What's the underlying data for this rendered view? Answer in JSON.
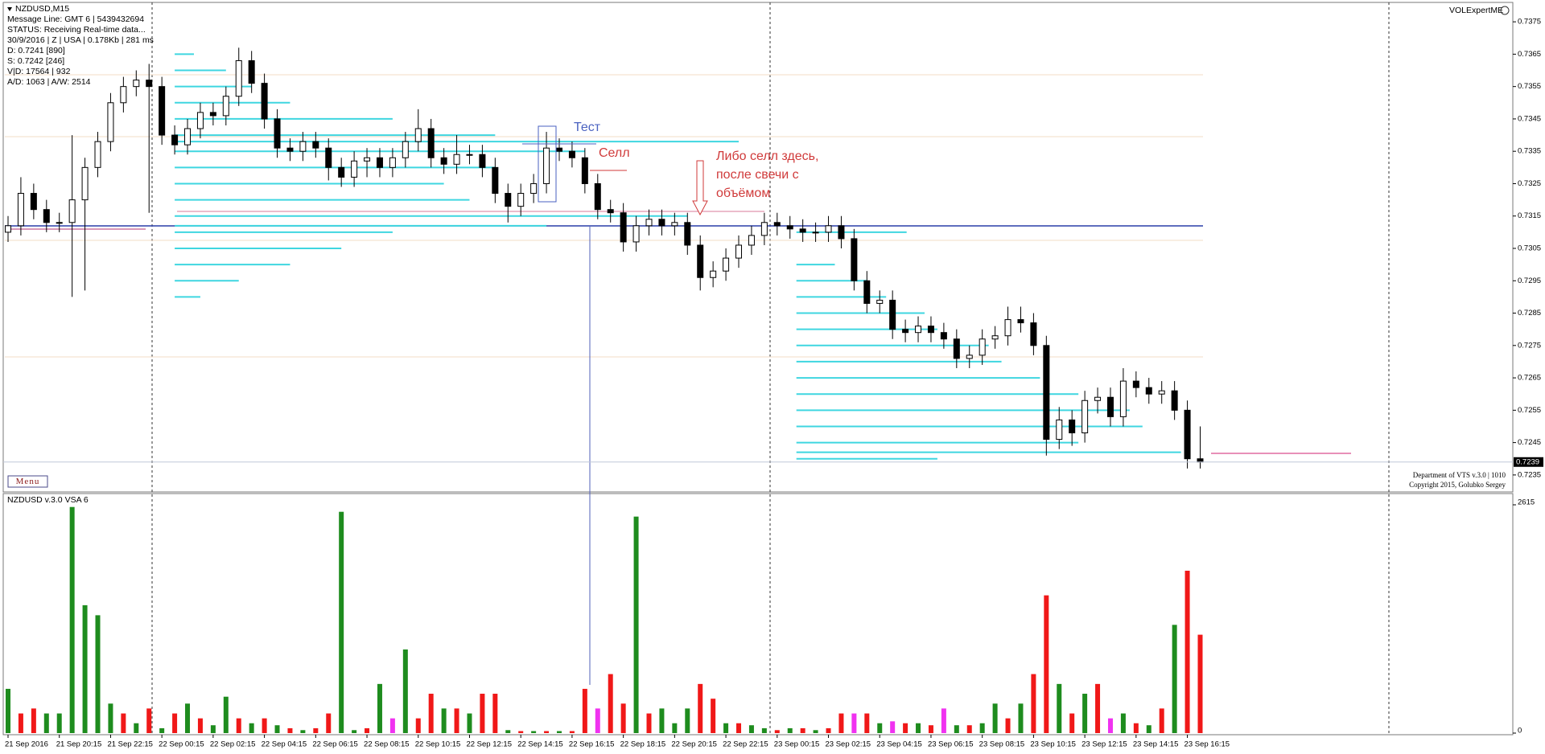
{
  "chart_data": {
    "type": "candlestick",
    "info_lines": [
      "NZDUSD,M15",
      "Message Line: GMT 6 | 5439432694",
      "STATUS:  Receiving Real-time data...",
      "30/9/2016 | Z | USA | 0.178Kb | 281 ms",
      "D: 0.7241  [890]",
      "S: 0.7242  [246]",
      "V|D: 17564 | 932",
      "A/D: 1063 | A/W: 2514"
    ],
    "indicator_name": "VOLExpertME",
    "menu": "Menu",
    "credits": [
      "Department of VTS  v.3.0 | 1010",
      "Copyright 2015, Golubko Sergey"
    ],
    "annotations": [
      "Тест",
      "Селл",
      "Либо селл здесь,",
      "после свечи с",
      "объёмом"
    ],
    "x": [
      "21 Sep 2016",
      null,
      null,
      null,
      "21 Sep 20:15",
      null,
      null,
      null,
      "21 Sep 22:15",
      null,
      null,
      null,
      "22 Sep 00:15",
      null,
      null,
      null,
      "22 Sep 02:15",
      null,
      null,
      null,
      "22 Sep 04:15",
      null,
      null,
      null,
      "22 Sep 06:15",
      null,
      null,
      null,
      "22 Sep 08:15",
      null,
      null,
      null,
      "22 Sep 10:15",
      null,
      null,
      null,
      "22 Sep 12:15",
      null,
      null,
      null,
      "22 Sep 14:15",
      null,
      null,
      null,
      "22 Sep 16:15",
      null,
      null,
      null,
      "22 Sep 18:15",
      null,
      null,
      null,
      "22 Sep 20:15",
      null,
      null,
      null,
      "22 Sep 22:15",
      null,
      null,
      null,
      "23 Sep 00:15",
      null,
      null,
      null,
      "23 Sep 02:15",
      null,
      null,
      null,
      "23 Sep 04:15",
      null,
      null,
      null,
      "23 Sep 06:15",
      null,
      null,
      null,
      "23 Sep 08:15",
      null,
      null,
      null,
      "23 Sep 10:15",
      null,
      null,
      null,
      "23 Sep 12:15",
      null,
      null,
      null,
      "23 Sep 14:15",
      null,
      null,
      null,
      "23 Sep 16:15",
      null
    ],
    "open": [
      0.731,
      0.7312,
      0.7322,
      0.7317,
      0.7313,
      0.7313,
      0.732,
      0.733,
      0.7338,
      0.735,
      0.7355,
      0.7357,
      0.7355,
      0.734,
      0.7337,
      0.7342,
      0.7347,
      0.7346,
      0.7352,
      0.7363,
      0.7356,
      0.7345,
      0.7336,
      0.7335,
      0.7338,
      0.7336,
      0.733,
      0.7327,
      0.7332,
      0.7333,
      0.733,
      0.7333,
      0.7338,
      0.7342,
      0.7333,
      0.7331,
      0.7334,
      0.7334,
      0.733,
      0.7322,
      0.7318,
      0.7322,
      0.7325,
      0.7336,
      0.7335,
      0.7333,
      0.7325,
      0.7317,
      0.7316,
      0.7307,
      0.7312,
      0.7314,
      0.7312,
      0.7313,
      0.7306,
      0.7296,
      0.7298,
      0.7302,
      0.7306,
      0.7309,
      0.7313,
      0.7312,
      0.7311,
      0.731,
      0.731,
      0.7312,
      0.7308,
      0.7295,
      0.7288,
      0.7289,
      0.728,
      0.7279,
      0.7281,
      0.7279,
      0.7277,
      0.7271,
      0.7272,
      0.7277,
      0.7278,
      0.7283,
      0.7282,
      0.7275,
      0.7246,
      0.7252,
      0.7248,
      0.7258,
      0.7259,
      0.7253,
      0.7264,
      0.7262,
      0.726,
      0.7261,
      0.7255,
      0.724
    ],
    "high": [
      0.7315,
      0.7327,
      0.7325,
      0.732,
      0.7316,
      0.734,
      0.7333,
      0.7341,
      0.7353,
      0.7358,
      0.736,
      0.7362,
      0.7358,
      0.7343,
      0.7345,
      0.735,
      0.735,
      0.7355,
      0.7367,
      0.7366,
      0.7359,
      0.7348,
      0.7339,
      0.7341,
      0.7341,
      0.7339,
      0.7333,
      0.7335,
      0.7336,
      0.7336,
      0.7336,
      0.7341,
      0.7348,
      0.7345,
      0.7336,
      0.734,
      0.7337,
      0.7337,
      0.7333,
      0.7325,
      0.7325,
      0.7328,
      0.7341,
      0.7339,
      0.7338,
      0.7336,
      0.7328,
      0.732,
      0.7319,
      0.7315,
      0.7317,
      0.7317,
      0.7316,
      0.7316,
      0.7309,
      0.7301,
      0.7305,
      0.7309,
      0.7312,
      0.7316,
      0.7316,
      0.7315,
      0.7314,
      0.7313,
      0.7315,
      0.7315,
      0.7311,
      0.7298,
      0.7292,
      0.7292,
      0.7283,
      0.7284,
      0.7284,
      0.7282,
      0.728,
      0.7275,
      0.728,
      0.7281,
      0.7287,
      0.7287,
      0.7285,
      0.7278,
      0.7256,
      0.7255,
      0.7261,
      0.7262,
      0.7262,
      0.7268,
      0.7267,
      0.7265,
      0.7264,
      0.7264,
      0.7258,
      0.725
    ],
    "low": [
      0.7307,
      0.7309,
      0.7314,
      0.731,
      0.731,
      0.729,
      0.7292,
      0.7327,
      0.7335,
      0.7347,
      0.7352,
      0.7316,
      0.7337,
      0.7334,
      0.7334,
      0.7339,
      0.7343,
      0.7343,
      0.7349,
      0.7353,
      0.7342,
      0.7333,
      0.7332,
      0.7332,
      0.7333,
      0.7326,
      0.7324,
      0.7324,
      0.7327,
      0.7327,
      0.7327,
      0.733,
      0.7335,
      0.733,
      0.7328,
      0.7328,
      0.7331,
      0.7327,
      0.7319,
      0.7313,
      0.7315,
      0.7319,
      0.7322,
      0.7332,
      0.733,
      0.7322,
      0.7314,
      0.7313,
      0.7304,
      0.7304,
      0.7309,
      0.7309,
      0.7309,
      0.7303,
      0.7292,
      0.7293,
      0.7295,
      0.7299,
      0.7303,
      0.7306,
      0.7309,
      0.7308,
      0.7307,
      0.7307,
      0.7307,
      0.7305,
      0.7292,
      0.7285,
      0.7285,
      0.7277,
      0.7276,
      0.7276,
      0.7276,
      0.7274,
      0.7268,
      0.7268,
      0.7269,
      0.7274,
      0.7275,
      0.7279,
      0.7272,
      0.7241,
      0.7243,
      0.7244,
      0.7245,
      0.7254,
      0.725,
      0.725,
      0.7259,
      0.7257,
      0.7257,
      0.7252,
      0.7237,
      0.7237
    ],
    "close": [
      0.7312,
      0.7322,
      0.7317,
      0.7313,
      0.7313,
      0.732,
      0.733,
      0.7338,
      0.735,
      0.7355,
      0.7357,
      0.7355,
      0.734,
      0.7337,
      0.7342,
      0.7347,
      0.7346,
      0.7352,
      0.7363,
      0.7356,
      0.7345,
      0.7336,
      0.7335,
      0.7338,
      0.7336,
      0.733,
      0.7327,
      0.7332,
      0.7333,
      0.733,
      0.7333,
      0.7338,
      0.7342,
      0.7333,
      0.7331,
      0.7334,
      0.7334,
      0.733,
      0.7322,
      0.7318,
      0.7322,
      0.7325,
      0.7336,
      0.7335,
      0.7333,
      0.7325,
      0.7317,
      0.7316,
      0.7307,
      0.7312,
      0.7314,
      0.7312,
      0.7313,
      0.7306,
      0.7296,
      0.7298,
      0.7302,
      0.7306,
      0.7309,
      0.7313,
      0.7312,
      0.7311,
      0.731,
      0.731,
      0.7312,
      0.7308,
      0.7295,
      0.7288,
      0.7289,
      0.728,
      0.7279,
      0.7281,
      0.7279,
      0.7277,
      0.7271,
      0.7272,
      0.7277,
      0.7278,
      0.7283,
      0.7282,
      0.7275,
      0.7246,
      0.7252,
      0.7248,
      0.7258,
      0.7259,
      0.7253,
      0.7264,
      0.7262,
      0.726,
      0.7261,
      0.7255,
      0.724,
      0.7239
    ],
    "up_color": "#ffffff",
    "down_color": "#000000",
    "ylim": [
      0.723,
      0.738
    ],
    "yticks": [
      0.7375,
      0.7365,
      0.7355,
      0.7345,
      0.7335,
      0.7325,
      0.7315,
      0.7305,
      0.7295,
      0.7285,
      0.7275,
      0.7265,
      0.7255,
      0.7245,
      0.7235
    ],
    "current_price": 0.7239,
    "grid": false,
    "volume_profiles": [
      {
        "color": "#3fd6e0",
        "start": 13,
        "prices": [
          0.7365,
          0.736,
          0.7355,
          0.735,
          0.7345,
          0.734,
          0.7338,
          0.7335,
          0.733,
          0.7325,
          0.732,
          0.7315,
          0.7312,
          0.731,
          0.7305,
          0.73,
          0.7295,
          0.729
        ],
        "lengths": [
          1.5,
          4,
          6,
          9,
          17,
          25,
          44,
          32,
          25,
          21,
          23,
          40,
          29,
          17,
          13,
          9,
          5,
          2
        ]
      },
      {
        "color": "#3fd6e0",
        "start": 61.5,
        "prices": [
          0.731,
          0.73,
          0.7295,
          0.729,
          0.7285,
          0.728,
          0.7275,
          0.727,
          0.7265,
          0.726,
          0.7255,
          0.725,
          0.7245,
          0.7242,
          0.724
        ],
        "lengths": [
          8.6,
          3,
          5.5,
          7,
          10,
          11,
          15,
          16,
          19,
          22,
          26,
          27,
          22,
          30,
          11
        ]
      }
    ],
    "volume": {
      "name": "NZDUSD  v.3.0 VSA 6",
      "values": [
        507,
        225,
        282,
        225,
        225,
        2590,
        1465,
        1350,
        338,
        225,
        113,
        282,
        56,
        225,
        338,
        169,
        90,
        417,
        169,
        113,
        169,
        90,
        56,
        34,
        56,
        225,
        2535,
        34,
        56,
        563,
        169,
        958,
        169,
        451,
        282,
        282,
        225,
        451,
        451,
        34,
        23,
        23,
        23,
        23,
        23,
        507,
        282,
        676,
        338,
        2480,
        225,
        282,
        113,
        282,
        563,
        394,
        113,
        113,
        90,
        56,
        34,
        56,
        56,
        34,
        56,
        225,
        225,
        225,
        113,
        135,
        113,
        113,
        90,
        282,
        90,
        90,
        113,
        338,
        169,
        338,
        676,
        1578,
        563,
        225,
        451,
        563,
        169,
        225,
        113,
        90,
        282,
        1240,
        1860,
        1127
      ],
      "kinds": [
        "g",
        "r",
        "r",
        "g",
        "g",
        "g",
        "g",
        "g",
        "g",
        "r",
        "g",
        "r",
        "g",
        "r",
        "g",
        "r",
        "g",
        "g",
        "r",
        "g",
        "r",
        "g",
        "r",
        "g",
        "r",
        "r",
        "g",
        "g",
        "r",
        "g",
        "m",
        "g",
        "r",
        "r",
        "g",
        "r",
        "g",
        "r",
        "r",
        "g",
        "r",
        "g",
        "r",
        "g",
        "r",
        "r",
        "m",
        "r",
        "r",
        "g",
        "r",
        "g",
        "g",
        "g",
        "r",
        "r",
        "g",
        "r",
        "g",
        "g",
        "r",
        "g",
        "r",
        "g",
        "r",
        "r",
        "m",
        "r",
        "g",
        "m",
        "r",
        "g",
        "r",
        "m",
        "g",
        "r",
        "g",
        "g",
        "r",
        "g",
        "r",
        "r",
        "g",
        "r",
        "g",
        "r",
        "m",
        "g",
        "r",
        "g",
        "r",
        "g",
        "r",
        "r"
      ],
      "palette": {
        "g": "#1e8c1e",
        "r": "#f01818",
        "m": "#f032f0"
      },
      "ylim": [
        0,
        2615
      ],
      "yticks": [
        0,
        2615
      ]
    }
  }
}
